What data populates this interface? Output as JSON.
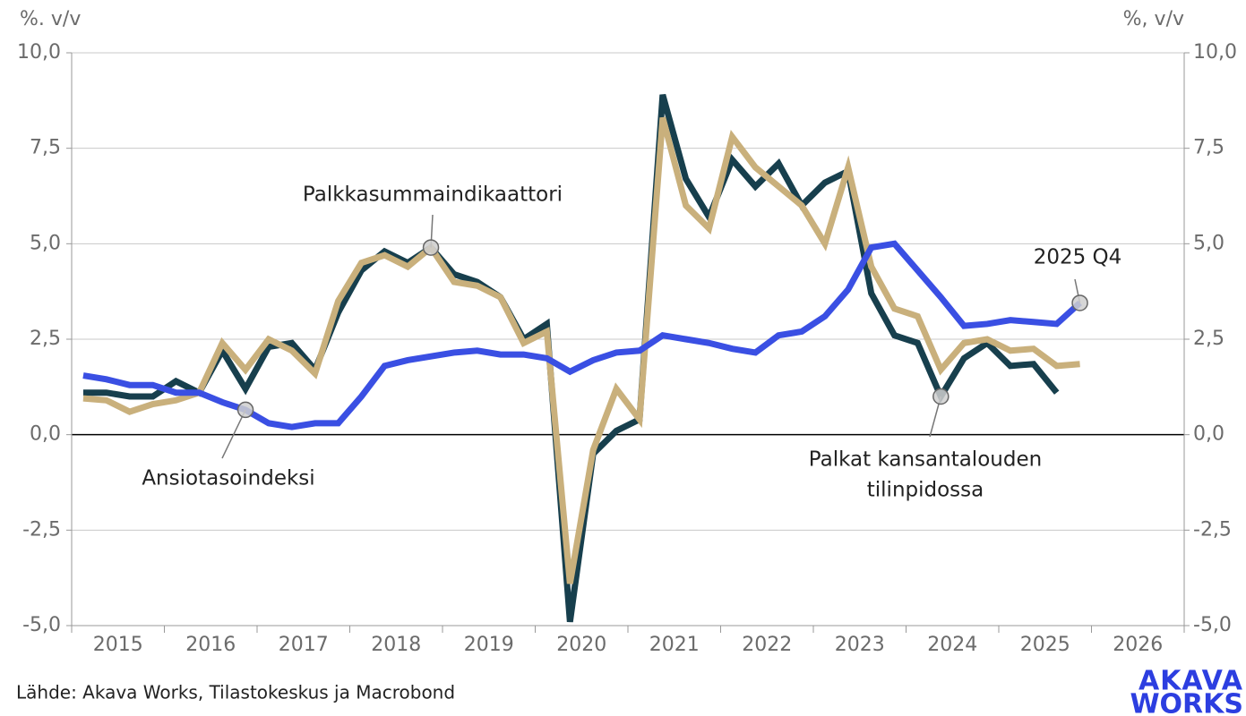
{
  "chart_data": {
    "type": "line",
    "y_label": "%. v/v",
    "y2_label": "%, v/v",
    "categories": [
      "2015",
      null,
      null,
      null,
      "2016",
      null,
      null,
      null,
      "2017",
      null,
      null,
      null,
      "2018",
      null,
      null,
      null,
      "2019",
      null,
      null,
      null,
      "2020",
      null,
      null,
      null,
      "2021",
      null,
      null,
      null,
      "2022",
      null,
      null,
      null,
      "2023",
      null,
      null,
      null,
      "2024",
      null,
      null,
      null,
      "2025",
      null,
      null,
      null,
      "2026",
      null,
      null,
      null
    ],
    "series": [
      {
        "color": "#173f4d",
        "values": [
          1.1,
          1.1,
          1.0,
          1.0,
          1.4,
          1.1,
          2.2,
          1.2,
          2.3,
          2.4,
          1.7,
          3.2,
          4.3,
          4.8,
          4.5,
          4.9,
          4.2,
          4.0,
          3.6,
          2.5,
          2.9,
          -4.9,
          -0.5,
          0.1,
          0.4,
          8.9,
          6.7,
          5.7,
          7.2,
          6.5,
          7.1,
          6.0,
          6.6,
          6.9,
          3.7,
          2.6,
          2.4,
          1.0,
          2.0,
          2.4,
          1.8,
          1.85,
          1.1,
          null,
          null,
          null,
          null,
          null
        ]
      },
      {
        "color": "#c9b07c",
        "values": [
          0.95,
          0.9,
          0.6,
          0.8,
          0.9,
          1.1,
          2.4,
          1.7,
          2.5,
          2.2,
          1.6,
          3.5,
          4.5,
          4.7,
          4.4,
          4.9,
          4.0,
          3.9,
          3.6,
          2.4,
          2.7,
          -3.9,
          -0.4,
          1.2,
          0.4,
          8.3,
          6.0,
          5.4,
          7.8,
          7.0,
          6.5,
          6.0,
          5.0,
          7.0,
          4.4,
          3.3,
          3.1,
          1.7,
          2.4,
          2.5,
          2.2,
          2.25,
          1.8,
          1.85,
          null,
          null,
          null,
          null
        ]
      },
      {
        "color": "#3a4fe3",
        "values": [
          1.55,
          1.45,
          1.3,
          1.3,
          1.1,
          1.1,
          0.85,
          0.65,
          0.3,
          0.2,
          0.3,
          0.3,
          1.0,
          1.8,
          1.95,
          2.05,
          2.15,
          2.2,
          2.1,
          2.1,
          2.0,
          1.65,
          1.95,
          2.15,
          2.2,
          2.6,
          2.5,
          2.4,
          2.25,
          2.15,
          2.6,
          2.7,
          3.1,
          3.8,
          4.9,
          5.0,
          4.3,
          3.6,
          2.85,
          2.9,
          3.0,
          2.95,
          2.9,
          3.45,
          null,
          null,
          null,
          null
        ]
      }
    ],
    "ylim": [
      -5,
      10
    ],
    "yticks": [
      {
        "value": -5,
        "label": "-5,0"
      },
      {
        "value": -2.5,
        "label": "-2,5"
      },
      {
        "value": 0,
        "label": "0,0"
      },
      {
        "value": 2.5,
        "label": "2,5"
      },
      {
        "value": 5,
        "label": "5,0"
      },
      {
        "value": 7.5,
        "label": "7,5"
      },
      {
        "value": 10,
        "label": "10,0"
      }
    ],
    "y2lim": [
      -5,
      10
    ],
    "y2ticks": [
      {
        "value": -5,
        "label": "-5,0"
      },
      {
        "value": -2.5,
        "label": "-2,5"
      },
      {
        "value": 0,
        "label": "0,0"
      },
      {
        "value": 2.5,
        "label": "2,5"
      },
      {
        "value": 5,
        "label": "5,0"
      },
      {
        "value": 7.5,
        "label": "7,5"
      },
      {
        "value": 10,
        "label": "10,0"
      }
    ],
    "grid": true,
    "annotations": [
      {
        "text": [
          "Palkkasummaindikaattori"
        ]
      },
      {
        "text": [
          "Ansiotasoindeksi"
        ]
      },
      {
        "text": [
          "Palkat kansantalouden",
          "tilinpidossa"
        ]
      },
      {
        "text": [
          "2025 Q4"
        ]
      }
    ],
    "source": "Lähde: Akava Works, Tilastokeskus ja Macrobond",
    "logo": [
      "AKAVA",
      "WORKS"
    ]
  }
}
